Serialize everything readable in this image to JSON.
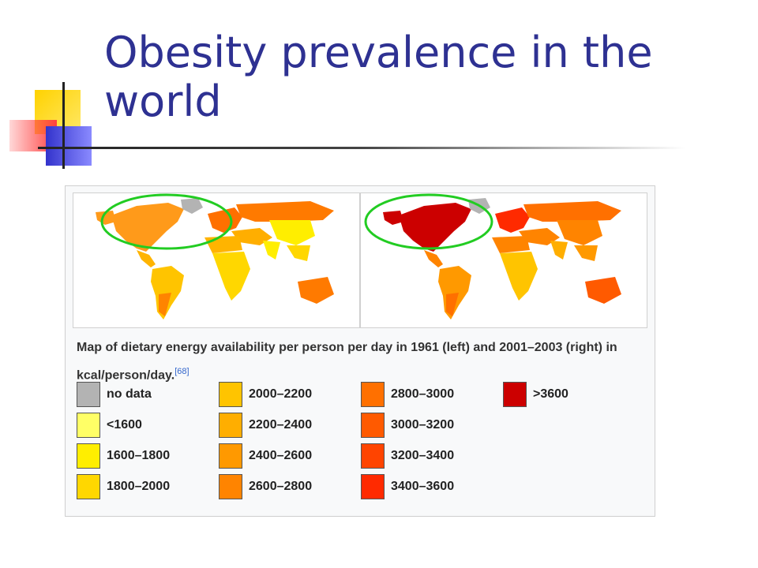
{
  "slide": {
    "title": "Obesity prevalence in the world"
  },
  "figure": {
    "caption": "Map of dietary energy availability per person per day in 1961 (left) and 2001–2003 (right) in kcal/person/day.",
    "citation": "[68]",
    "maps": [
      {
        "id": "left",
        "period": "1961",
        "highlight_region": "North America and Europe",
        "highlight_color": "#22cc22"
      },
      {
        "id": "right",
        "period": "2001–2003",
        "highlight_region": "North America and Europe",
        "highlight_color": "#22cc22"
      }
    ],
    "legend": [
      {
        "label": "no data",
        "color": "#b3b3b3"
      },
      {
        "label": "<1600",
        "color": "#ffff66"
      },
      {
        "label": "1600–1800",
        "color": "#ffee00"
      },
      {
        "label": "1800–2000",
        "color": "#ffd700"
      },
      {
        "label": "2000–2200",
        "color": "#ffc400"
      },
      {
        "label": "2200–2400",
        "color": "#ffae00"
      },
      {
        "label": "2400–2600",
        "color": "#ff9900"
      },
      {
        "label": "2600–2800",
        "color": "#ff8400"
      },
      {
        "label": "2800–3000",
        "color": "#ff7000"
      },
      {
        "label": "3000–3200",
        "color": "#ff5a00"
      },
      {
        "label": "3200–3400",
        "color": "#ff4400"
      },
      {
        "label": "3400–3600",
        "color": "#ff2a00"
      },
      {
        "label": ">3600",
        "color": "#cc0000"
      }
    ]
  },
  "colors": {
    "title": "#2e3192",
    "ellipse": "#22cc22"
  }
}
